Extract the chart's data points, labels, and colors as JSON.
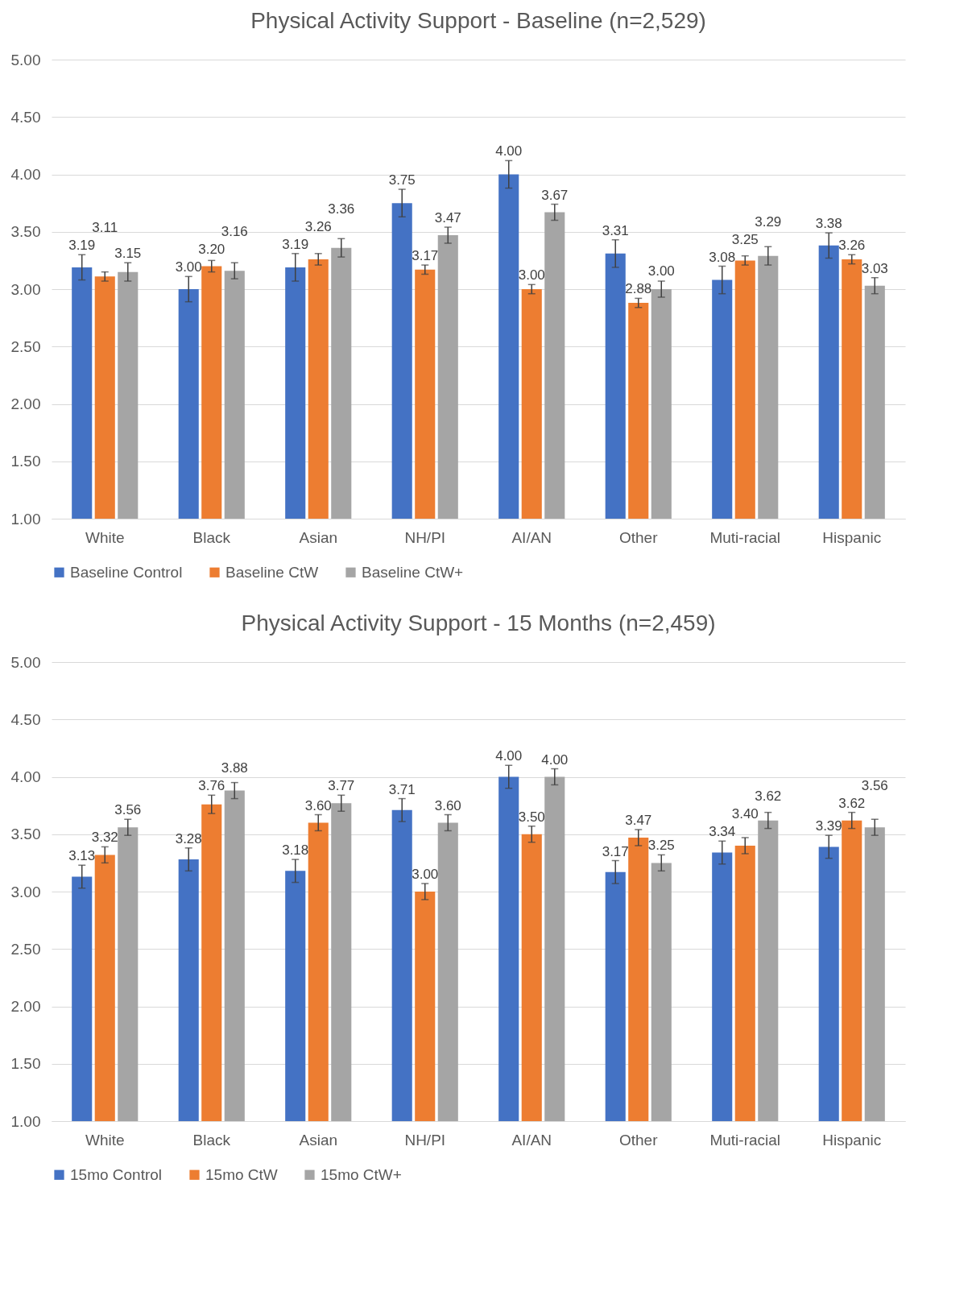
{
  "chart_data": [
    {
      "type": "bar",
      "title": "Physical Activity Support - Baseline (n=2,529)",
      "categories": [
        "White",
        "Black",
        "Asian",
        "NH/PI",
        "AI/AN",
        "Other",
        "Muti-racial",
        "Hispanic"
      ],
      "series": [
        {
          "name": "Baseline Control",
          "color": "#4472c4",
          "values": [
            3.19,
            3.0,
            3.19,
            3.75,
            4.0,
            3.31,
            3.08,
            3.38
          ],
          "value_labels": [
            "3.19",
            "3.00",
            "3.19",
            "3.75",
            "4.00",
            "3.31",
            "3.08",
            "3.38"
          ],
          "errors": [
            0.11,
            0.11,
            0.12,
            0.12,
            0.12,
            0.12,
            0.12,
            0.11
          ]
        },
        {
          "name": "Baseline CtW",
          "color": "#ed7d31",
          "values": [
            3.11,
            3.2,
            3.26,
            3.17,
            3.0,
            2.88,
            3.25,
            3.26
          ],
          "value_labels": [
            "3.11",
            "3.20",
            "3.26",
            "3.17",
            "3.00",
            "2.88",
            "3.25",
            "3.26"
          ],
          "errors": [
            0.04,
            0.05,
            0.05,
            0.04,
            0.04,
            0.04,
            0.04,
            0.04
          ]
        },
        {
          "name": "Baseline CtW+",
          "color": "#a5a5a5",
          "values": [
            3.15,
            3.16,
            3.36,
            3.47,
            3.67,
            3.0,
            3.29,
            3.03
          ],
          "value_labels": [
            "3.15",
            "3.16",
            "3.36",
            "3.47",
            "3.67",
            "3.00",
            "3.29",
            "3.03"
          ],
          "errors": [
            0.08,
            0.07,
            0.08,
            0.07,
            0.07,
            0.07,
            0.08,
            0.07
          ]
        }
      ],
      "ylim": [
        1,
        5
      ],
      "yticks": [
        {
          "value": 1,
          "label": "1.00"
        },
        {
          "value": 1.5,
          "label": "1.50"
        },
        {
          "value": 2,
          "label": "2.00"
        },
        {
          "value": 2.5,
          "label": "2.50"
        },
        {
          "value": 3,
          "label": "3.00"
        },
        {
          "value": 3.5,
          "label": "3.50"
        },
        {
          "value": 4,
          "label": "4.00"
        },
        {
          "value": 4.5,
          "label": "4.50"
        },
        {
          "value": 5,
          "label": "5.00"
        }
      ],
      "grid": "y",
      "legend": "bottom"
    },
    {
      "type": "bar",
      "title": "Physical Activity Support - 15 Months (n=2,459)",
      "categories": [
        "White",
        "Black",
        "Asian",
        "NH/PI",
        "AI/AN",
        "Other",
        "Muti-racial",
        "Hispanic"
      ],
      "series": [
        {
          "name": "15mo Control",
          "color": "#4472c4",
          "values": [
            3.13,
            3.28,
            3.18,
            3.71,
            4.0,
            3.17,
            3.34,
            3.39
          ],
          "value_labels": [
            "3.13",
            "3.28",
            "3.18",
            "3.71",
            "4.00",
            "3.17",
            "3.34",
            "3.39"
          ],
          "errors": [
            0.1,
            0.1,
            0.1,
            0.1,
            0.1,
            0.1,
            0.1,
            0.1
          ]
        },
        {
          "name": "15mo CtW",
          "color": "#ed7d31",
          "values": [
            3.32,
            3.76,
            3.6,
            3.0,
            3.5,
            3.47,
            3.4,
            3.62
          ],
          "value_labels": [
            "3.32",
            "3.76",
            "3.60",
            "3.00",
            "3.50",
            "3.47",
            "3.40",
            "3.62"
          ],
          "errors": [
            0.07,
            0.08,
            0.07,
            0.07,
            0.07,
            0.07,
            0.07,
            0.07
          ]
        },
        {
          "name": "15mo CtW+",
          "color": "#a5a5a5",
          "values": [
            3.56,
            3.88,
            3.77,
            3.6,
            4.0,
            3.25,
            3.62,
            3.56
          ],
          "value_labels": [
            "3.56",
            "3.88",
            "3.77",
            "3.60",
            "4.00",
            "3.25",
            "3.62",
            "3.56"
          ],
          "errors": [
            0.07,
            0.07,
            0.07,
            0.07,
            0.07,
            0.07,
            0.07,
            0.07
          ]
        }
      ],
      "ylim": [
        1,
        5
      ],
      "yticks": [
        {
          "value": 1,
          "label": "1.00"
        },
        {
          "value": 1.5,
          "label": "1.50"
        },
        {
          "value": 2,
          "label": "2.00"
        },
        {
          "value": 2.5,
          "label": "2.50"
        },
        {
          "value": 3,
          "label": "3.00"
        },
        {
          "value": 3.5,
          "label": "3.50"
        },
        {
          "value": 4,
          "label": "4.00"
        },
        {
          "value": 4.5,
          "label": "4.50"
        },
        {
          "value": 5,
          "label": "5.00"
        }
      ],
      "grid": "y",
      "legend": "bottom"
    }
  ]
}
